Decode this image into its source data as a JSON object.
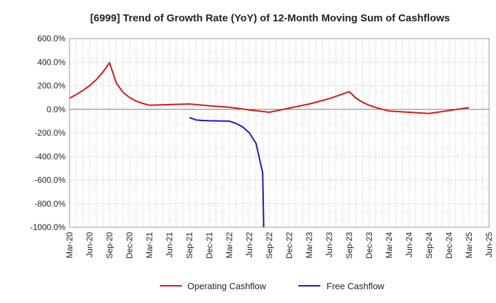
{
  "chart_data": {
    "type": "line",
    "title": "[6999]  Trend of Growth Rate (YoY) of 12-Month Moving Sum of Cashflows",
    "xlabel": "",
    "ylabel": "",
    "ylim": [
      -1000,
      600
    ],
    "y_ticks": [
      600,
      400,
      200,
      0,
      -200,
      -400,
      -600,
      -800,
      -1000
    ],
    "y_tick_labels": [
      "600.0%",
      "400.0%",
      "200.0%",
      "0.0%",
      "-200.0%",
      "-400.0%",
      "-600.0%",
      "-800.0%",
      "-1000.0%"
    ],
    "x_tick_labels": [
      "Mar-20",
      "Jun-20",
      "Sep-20",
      "Dec-20",
      "Mar-21",
      "Jun-21",
      "Sep-21",
      "Dec-21",
      "Mar-22",
      "Jun-22",
      "Sep-22",
      "Dec-22",
      "Mar-23",
      "Jun-23",
      "Sep-23",
      "Dec-23",
      "Mar-24",
      "Jun-24",
      "Sep-24",
      "Dec-24",
      "Mar-25",
      "Jun-25"
    ],
    "grid": true,
    "legend_position": "bottom",
    "series": [
      {
        "name": "Operating Cashflow",
        "color": "#dd1111",
        "points": [
          [
            "Mar-20",
            95
          ],
          [
            "Apr-20",
            125
          ],
          [
            "May-20",
            160
          ],
          [
            "Jun-20",
            200
          ],
          [
            "Jul-20",
            250
          ],
          [
            "Aug-20",
            315
          ],
          [
            "Sep-20",
            395
          ],
          [
            "Oct-20",
            225
          ],
          [
            "Nov-20",
            145
          ],
          [
            "Dec-20",
            100
          ],
          [
            "Jan-21",
            70
          ],
          [
            "Feb-21",
            50
          ],
          [
            "Mar-21",
            35
          ],
          [
            "Jun-21",
            40
          ],
          [
            "Sep-21",
            45
          ],
          [
            "Dec-21",
            30
          ],
          [
            "Mar-22",
            18
          ],
          [
            "Jun-22",
            -5
          ],
          [
            "Sep-22",
            -25
          ],
          [
            "Dec-22",
            10
          ],
          [
            "Mar-23",
            45
          ],
          [
            "Jun-23",
            90
          ],
          [
            "Sep-23",
            150
          ],
          [
            "Oct-23",
            95
          ],
          [
            "Nov-23",
            60
          ],
          [
            "Dec-23",
            35
          ],
          [
            "Jan-24",
            15
          ],
          [
            "Mar-24",
            -15
          ],
          [
            "Jun-24",
            -25
          ],
          [
            "Sep-24",
            -35
          ],
          [
            "Dec-24",
            -10
          ],
          [
            "Mar-25",
            15
          ]
        ]
      },
      {
        "name": "Free Cashflow",
        "color": "#1111cc",
        "points": [
          [
            "Sep-21",
            -70
          ],
          [
            "Oct-21",
            -90
          ],
          [
            "Nov-21",
            -95
          ],
          [
            "Dec-21",
            -97
          ],
          [
            "Jan-22",
            -98
          ],
          [
            "Feb-22",
            -99
          ],
          [
            "Mar-22",
            -100
          ],
          [
            "Apr-22",
            -120
          ],
          [
            "May-22",
            -150
          ],
          [
            "Jun-22",
            -200
          ],
          [
            "Jul-22",
            -290
          ],
          [
            "Aug-22",
            -540
          ],
          [
            "Aug-22+",
            -1000
          ]
        ]
      }
    ]
  }
}
